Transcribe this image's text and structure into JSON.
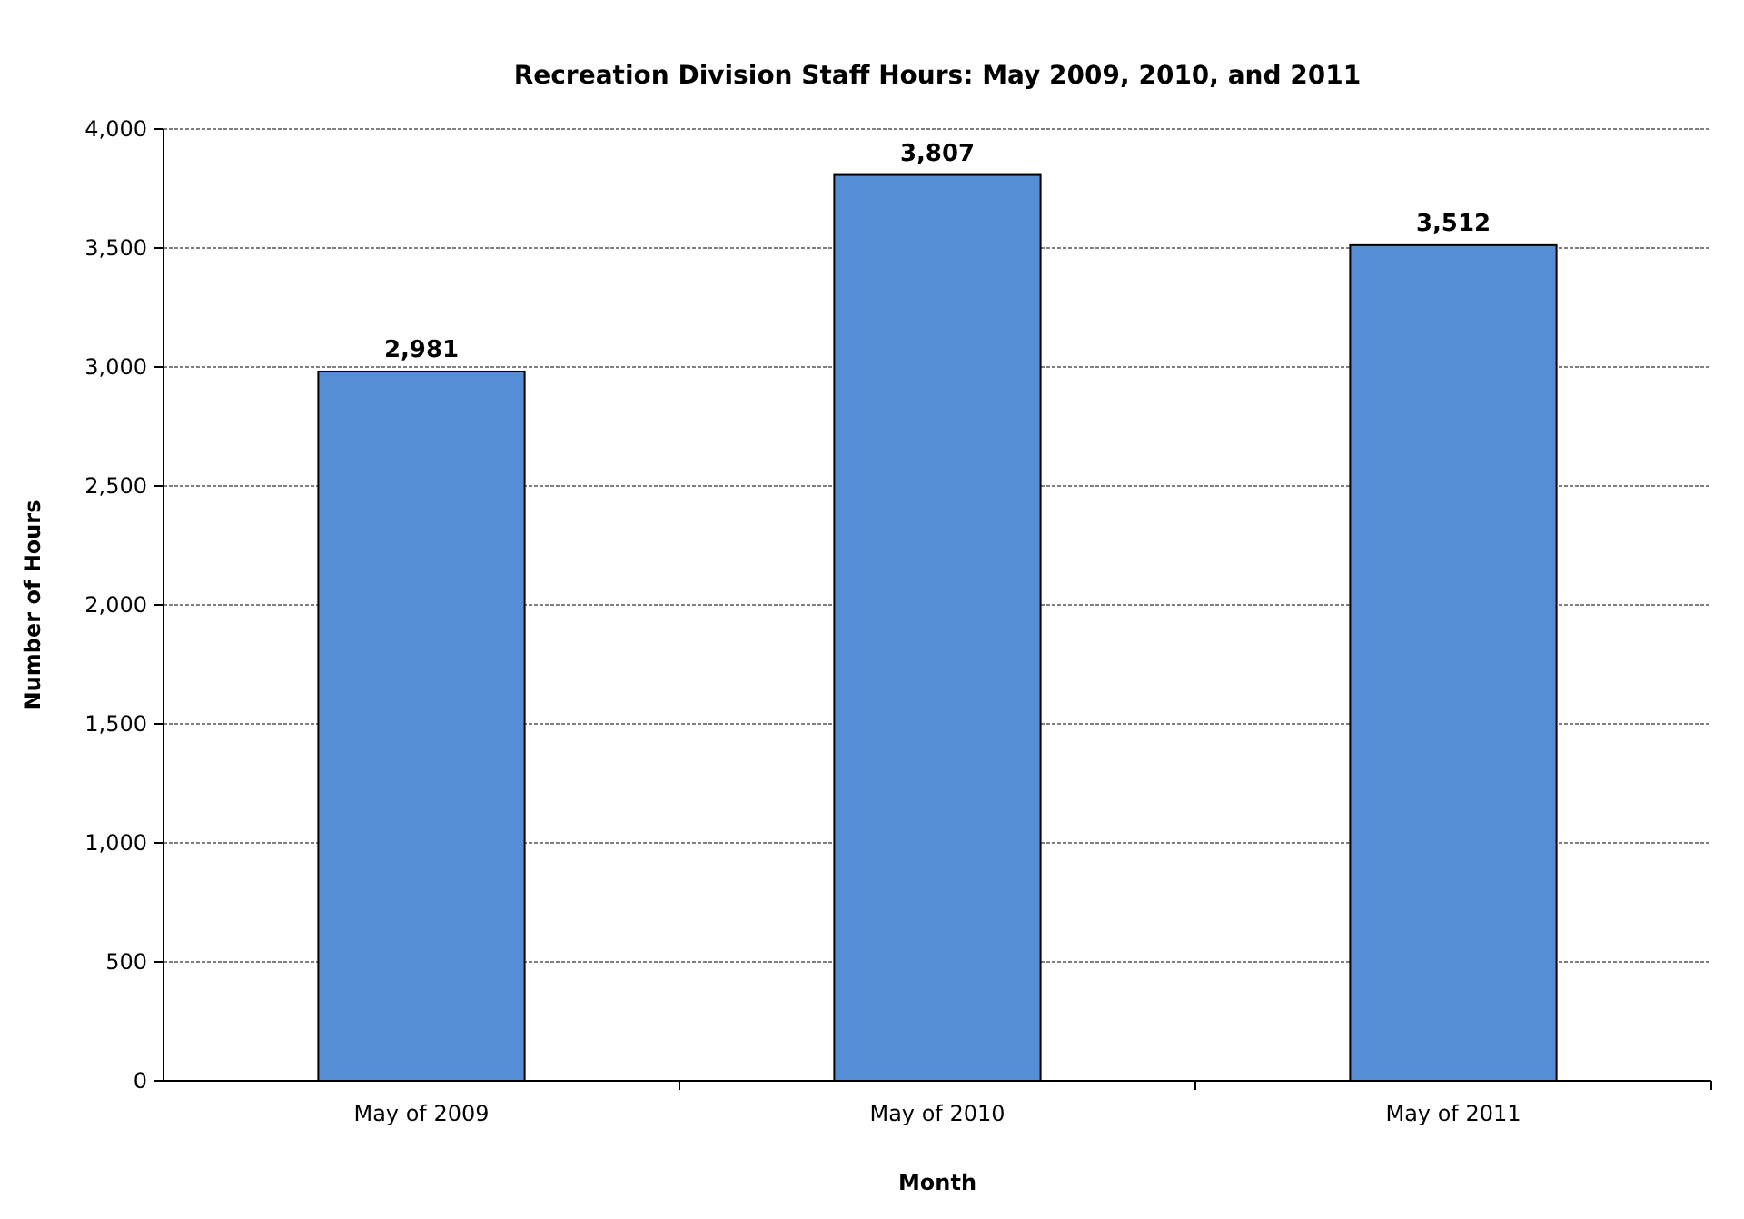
{
  "chart_data": {
    "type": "bar",
    "title": "Recreation Division Staff Hours: May 2009, 2010, and 2011",
    "xlabel": "Month",
    "ylabel": "Number of Hours",
    "categories": [
      "May of 2009",
      "May of 2010",
      "May of 2011"
    ],
    "values": [
      2981,
      3807,
      3512
    ],
    "color": "#558ed5",
    "value_labels": [
      "2,981",
      "3,807",
      "3,512"
    ],
    "ylim": [
      0,
      4000
    ],
    "yticks": [
      {
        "value": 0,
        "label": "0"
      },
      {
        "value": 500,
        "label": "500"
      },
      {
        "value": 1000,
        "label": "1,000"
      },
      {
        "value": 1500,
        "label": "1,500"
      },
      {
        "value": 2000,
        "label": "2,000"
      },
      {
        "value": 2500,
        "label": "2,500"
      },
      {
        "value": 3000,
        "label": "3,000"
      },
      {
        "value": 3500,
        "label": "3,500"
      },
      {
        "value": 4000,
        "label": "4,000"
      }
    ],
    "grid": "y"
  }
}
